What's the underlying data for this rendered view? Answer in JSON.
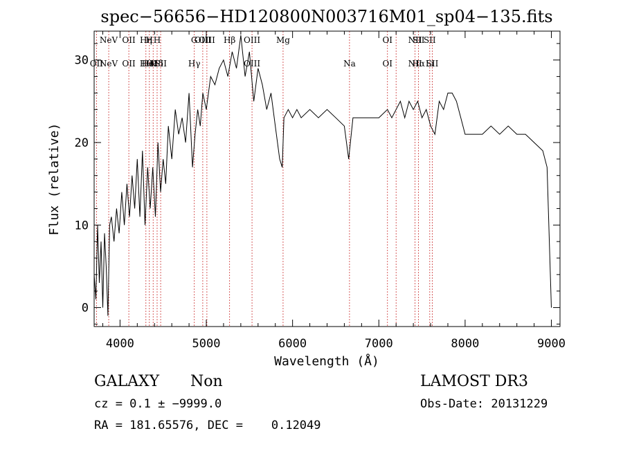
{
  "title": "spec−56656−HD120800N003716M01_sp04−135.fits",
  "xlabel": "Wavelength (Å)",
  "ylabel": "Flux (relative)",
  "info": {
    "class": "GALAXY",
    "subclass": "Non",
    "survey": "LAMOST DR3",
    "cz": "cz = 0.1 ± −9999.0",
    "obsdate": "Obs-Date: 20131229",
    "radec": "RA = 181.65576, DEC =    0.12049"
  },
  "chart_data": {
    "type": "line",
    "xlim": [
      3700,
      9100
    ],
    "ylim": [
      -2.3,
      33.5
    ],
    "xticks": [
      4000,
      5000,
      6000,
      7000,
      8000,
      9000
    ],
    "yticks": [
      0,
      10,
      20,
      30
    ],
    "series": [
      {
        "x": [
          3700,
          3720,
          3740,
          3760,
          3780,
          3800,
          3820,
          3840,
          3860,
          3880,
          3900,
          3930,
          3960,
          3990,
          4020,
          4050,
          4080,
          4110,
          4140,
          4170,
          4200,
          4230,
          4260,
          4290,
          4320,
          4350,
          4380,
          4410,
          4440,
          4470,
          4500,
          4530,
          4560,
          4600,
          4640,
          4680,
          4720,
          4760,
          4800,
          4840,
          4870,
          4900,
          4930,
          4960,
          5000,
          5050,
          5100,
          5150,
          5200,
          5250,
          5300,
          5350,
          5400,
          5450,
          5500,
          5550,
          5600,
          5650,
          5700,
          5750,
          5800,
          5850,
          5880,
          5900,
          5950,
          6000,
          6050,
          6100,
          6200,
          6300,
          6400,
          6500,
          6600,
          6650,
          6700,
          6800,
          6900,
          7000,
          7100,
          7150,
          7200,
          7250,
          7300,
          7350,
          7400,
          7450,
          7500,
          7550,
          7600,
          7650,
          7700,
          7750,
          7800,
          7850,
          7900,
          7950,
          8000,
          8050,
          8100,
          8200,
          8300,
          8400,
          8500,
          8600,
          8700,
          8800,
          8900,
          8950,
          9000
        ],
        "values": [
          4,
          1,
          10,
          3,
          8,
          0,
          9,
          5,
          -1,
          10,
          11,
          8,
          12,
          9,
          14,
          10,
          15,
          11,
          16,
          12,
          18,
          11,
          19,
          10,
          17,
          12,
          17,
          11,
          20,
          14,
          18,
          15,
          22,
          18,
          24,
          21,
          23,
          20,
          26,
          17,
          21,
          24,
          22,
          26,
          24,
          28,
          27,
          29,
          30,
          28,
          31,
          29,
          33,
          28,
          31,
          25,
          29,
          27,
          24,
          26,
          22,
          18,
          17,
          23,
          24,
          23,
          24,
          23,
          24,
          23,
          24,
          23,
          22,
          18,
          23,
          23,
          23,
          23,
          24,
          23,
          24,
          25,
          23,
          25,
          24,
          25,
          23,
          24,
          22,
          21,
          25,
          24,
          26,
          26,
          25,
          23,
          21,
          21,
          21,
          21,
          22,
          21,
          22,
          21,
          21,
          20,
          19,
          17,
          0
        ],
        "x_label_hint": "",
        "name": ""
      }
    ],
    "lines": [
      {
        "x": 3727,
        "top": "",
        "bottom": "OII"
      },
      {
        "x": 3869,
        "top": "NeV",
        "bottom": "NeV"
      },
      {
        "x": 4102,
        "top": "OII",
        "bottom": "OII"
      },
      {
        "x": 4300,
        "top": "Hη",
        "bottom": "Hθ"
      },
      {
        "x": 4340,
        "top": "H",
        "bottom": "HeI"
      },
      {
        "x": 4384,
        "top": "",
        "bottom": "K"
      },
      {
        "x": 4430,
        "top": "H",
        "bottom": "Hδ"
      },
      {
        "x": 4471,
        "top": "",
        "bottom": "SII"
      },
      {
        "x": 4861,
        "top": "G",
        "bottom": "Hγ"
      },
      {
        "x": 4959,
        "top": "OIII",
        "bottom": ""
      },
      {
        "x": 5007,
        "top": "OIII",
        "bottom": ""
      },
      {
        "x": 5270,
        "top": "Hβ",
        "bottom": ""
      },
      {
        "x": 5530,
        "top": "OIII",
        "bottom": "OIII"
      },
      {
        "x": 5890,
        "top": "Mg",
        "bottom": ""
      },
      {
        "x": 6660,
        "top": "",
        "bottom": "Na"
      },
      {
        "x": 7100,
        "top": "OI",
        "bottom": "OI"
      },
      {
        "x": 7200,
        "top": "",
        "bottom": ""
      },
      {
        "x": 7420,
        "top": "NII",
        "bottom": "NII"
      },
      {
        "x": 7460,
        "top": "SII",
        "bottom": "Hα"
      },
      {
        "x": 7590,
        "top": "SII",
        "bottom": "Li"
      },
      {
        "x": 7620,
        "top": "",
        "bottom": "SII"
      }
    ],
    "grid": false,
    "line_color": "#000000",
    "marker_color": "#cc3333"
  }
}
